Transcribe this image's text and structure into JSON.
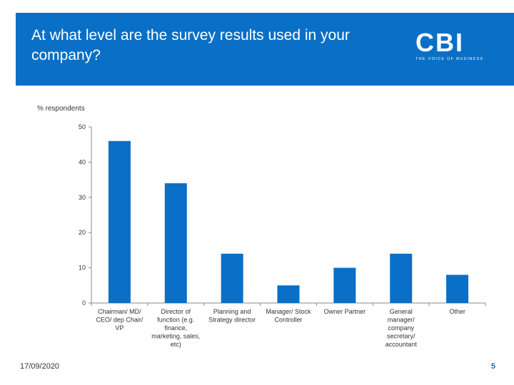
{
  "slide": {
    "title": "At what level are the survey results used in your company?",
    "logo_text": "CBI",
    "logo_tagline": "THE VOICE OF BUSINESS",
    "date": "17/09/2020",
    "page_number": "5"
  },
  "colors": {
    "banner": "#0a6fc6",
    "bar": "#0a6fc6"
  },
  "chart_data": {
    "type": "bar",
    "title": "",
    "xlabel": "",
    "ylabel": "% respondents",
    "ylim": [
      0,
      50
    ],
    "yticks": [
      0,
      10,
      20,
      30,
      40,
      50
    ],
    "grid": false,
    "categories": [
      "Chairman/ MD/ CEO/ dep Chair/ VP",
      "Director of function (e.g. finance, marketing, sales, etc)",
      "Planning and Strategy director",
      "Manager/ Stock Controller",
      "Owner Partner",
      "General manager/ company secretary/ accountant",
      "Other"
    ],
    "category_lines": [
      [
        "Chairman/ MD/",
        "CEO/ dep Chair/",
        "VP"
      ],
      [
        "Director of",
        "function (e.g.",
        "finance,",
        "marketing, sales,",
        "etc)"
      ],
      [
        "Planning and",
        "Strategy director"
      ],
      [
        "Manager/ Stock",
        "Controller"
      ],
      [
        "Owner Partner"
      ],
      [
        "General",
        "manager/",
        "company",
        "secretary/",
        "accountant"
      ],
      [
        "Other"
      ]
    ],
    "values": [
      46,
      34,
      14,
      5,
      10,
      14,
      8
    ]
  }
}
